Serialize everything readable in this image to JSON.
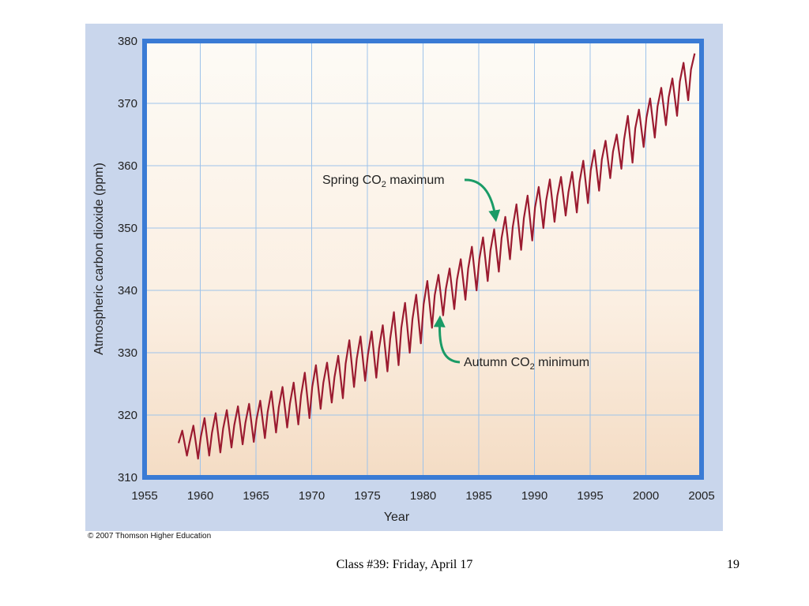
{
  "slide": {
    "footer_text": "Class #39: Friday, April 17",
    "page_number": "19",
    "copyright": "© 2007 Thomson Higher Education"
  },
  "colors": {
    "frame": "#3a7bd5",
    "panel": "#c9d6ec",
    "grid": "#9ec3ea",
    "plot_bg_top": "#fdfbf6",
    "plot_bg_bottom": "#f4dcc4",
    "series": "#9b1b30",
    "arrow": "#1a9b66"
  },
  "chart_data": {
    "type": "line",
    "title": "",
    "xlabel": "Year",
    "ylabel": "Atmospheric carbon dioxide (ppm)",
    "xlim": [
      1955,
      2005
    ],
    "ylim": [
      310,
      380
    ],
    "xticks": [
      1955,
      1960,
      1965,
      1970,
      1975,
      1980,
      1985,
      1990,
      1995,
      2000,
      2005
    ],
    "yticks": [
      310,
      320,
      330,
      340,
      350,
      360,
      370,
      380
    ],
    "grid": true,
    "annotations": [
      {
        "label_prefix": "Spring CO",
        "subscript": "2",
        "label_suffix": " maximum",
        "x": 1986.5,
        "y": 350.2
      },
      {
        "label_prefix": "Autumn CO",
        "subscript": "2",
        "label_suffix": " minimum",
        "x": 1981.5,
        "y": 336.5
      }
    ],
    "series": [
      {
        "x": [
          1958,
          1959,
          1960,
          1961,
          1962,
          1963,
          1964,
          1965,
          1966,
          1967,
          1968,
          1969,
          1970,
          1971,
          1972,
          1973,
          1974,
          1975,
          1976,
          1977,
          1978,
          1979,
          1980,
          1981,
          1982,
          1983,
          1984,
          1985,
          1986,
          1987,
          1988,
          1989,
          1990,
          1991,
          1992,
          1993,
          1994,
          1995,
          1996,
          1997,
          1998,
          1999,
          2000,
          2001,
          2002,
          2003,
          2004
        ],
        "max": [
          317.5,
          318.3,
          319.5,
          320.3,
          320.8,
          321.4,
          321.8,
          322.3,
          323.8,
          324.5,
          325.2,
          326.8,
          328.0,
          328.4,
          329.5,
          332.0,
          332.6,
          333.4,
          334.4,
          336.5,
          338.0,
          339.3,
          341.5,
          342.5,
          343.5,
          345.0,
          347.0,
          348.5,
          349.8,
          351.8,
          353.8,
          355.2,
          356.6,
          357.8,
          358.2,
          359.0,
          360.8,
          362.5,
          364.0,
          365.0,
          368.0,
          369.0,
          370.8,
          372.5,
          374.0,
          376.5,
          378.0
        ],
        "min": [
          313.5,
          313.0,
          313.5,
          314.0,
          314.8,
          315.3,
          315.7,
          316.3,
          317.2,
          318.0,
          318.5,
          319.5,
          321.0,
          322.0,
          322.7,
          324.5,
          325.5,
          326.0,
          327.0,
          328.0,
          330.0,
          331.5,
          334.0,
          336.0,
          337.0,
          338.5,
          340.0,
          341.5,
          343.0,
          345.0,
          346.5,
          348.0,
          350.0,
          351.0,
          352.0,
          352.5,
          354.0,
          356.0,
          358.0,
          359.5,
          360.5,
          363.0,
          364.5,
          366.5,
          368.0,
          370.5,
          372.8
        ]
      }
    ]
  }
}
